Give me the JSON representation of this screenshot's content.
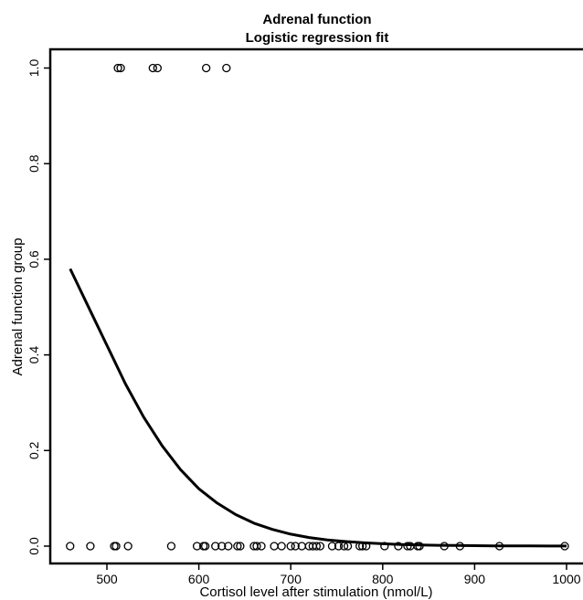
{
  "chart_data": {
    "type": "scatter",
    "title": "Adrenal function",
    "subtitle": "Logistic regression fit",
    "xlabel": "Cortisol level after stimulation (nmol/L)",
    "ylabel": "Adrenal function group",
    "xlim": [
      440,
      1020
    ],
    "ylim": [
      -0.03,
      1.04
    ],
    "x_ticks": [
      500,
      600,
      700,
      800,
      900,
      1000
    ],
    "x_tick_labels": [
      "500",
      "600",
      "700",
      "800",
      "900",
      "1000"
    ],
    "y_ticks": [
      0,
      0.2,
      0.4,
      0.6,
      0.8,
      1.0
    ],
    "y_tick_labels": [
      "0.0",
      "0.2",
      "0.4",
      "0.6",
      "0.8",
      "1.0"
    ],
    "grid": false,
    "points_group1": {
      "y": 1,
      "x": [
        512,
        515,
        550,
        555,
        608,
        630
      ]
    },
    "points_group0": {
      "y": 0,
      "x": [
        460,
        482,
        508,
        510,
        523,
        570,
        598,
        605,
        607,
        618,
        625,
        632,
        642,
        645,
        660,
        663,
        668,
        682,
        690,
        700,
        705,
        712,
        720,
        724,
        728,
        732,
        745,
        752,
        758,
        762,
        775,
        778,
        782,
        802,
        817,
        827,
        830,
        838,
        840,
        867,
        884,
        927,
        998
      ]
    },
    "fit_curve": {
      "type": "logistic",
      "x": [
        460,
        480,
        500,
        520,
        540,
        560,
        580,
        600,
        620,
        640,
        660,
        680,
        700,
        720,
        740,
        760,
        780,
        800,
        820,
        840,
        860,
        880,
        900,
        920,
        940,
        960,
        980,
        1000
      ],
      "y": [
        0.58,
        0.5,
        0.42,
        0.34,
        0.27,
        0.21,
        0.16,
        0.12,
        0.09,
        0.066,
        0.048,
        0.035,
        0.025,
        0.018,
        0.013,
        0.0095,
        0.0068,
        0.0049,
        0.0035,
        0.0025,
        0.0018,
        0.0013,
        0.0009,
        0.00066,
        0.00047,
        0.00034,
        0.00024,
        0.00017
      ]
    },
    "colors": {
      "points": "#000000",
      "curve": "#000000"
    }
  }
}
